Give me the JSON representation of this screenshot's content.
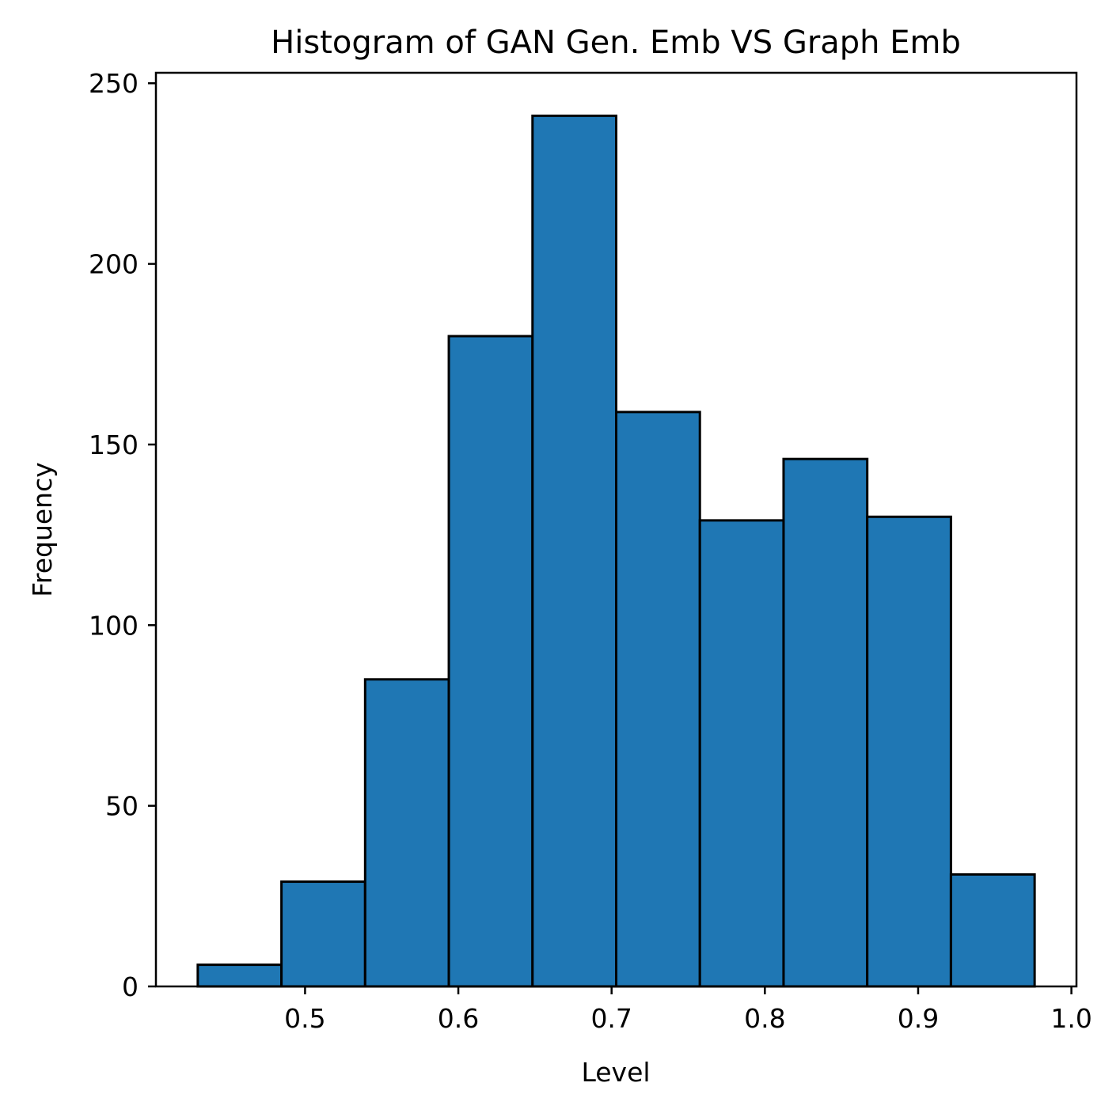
{
  "chart_data": {
    "type": "bar",
    "title": "Histogram of GAN Gen. Emb VS Graph Emb",
    "xlabel": "Level",
    "ylabel": "Frequency",
    "bin_edges": [
      0.43,
      0.4846,
      0.5392,
      0.5938,
      0.6484,
      0.703,
      0.7576,
      0.8122,
      0.8668,
      0.9214,
      0.976
    ],
    "values": [
      6,
      29,
      85,
      180,
      241,
      159,
      129,
      146,
      130,
      31
    ],
    "xlim": [
      0.4027,
      1.0033
    ],
    "ylim": [
      0,
      252.9
    ],
    "xticks": [
      {
        "value": 0.5,
        "label": "0.5"
      },
      {
        "value": 0.6,
        "label": "0.6"
      },
      {
        "value": 0.7,
        "label": "0.7"
      },
      {
        "value": 0.8,
        "label": "0.8"
      },
      {
        "value": 0.9,
        "label": "0.9"
      },
      {
        "value": 1.0,
        "label": "1.0"
      }
    ],
    "yticks": [
      {
        "value": 0,
        "label": "0"
      },
      {
        "value": 50,
        "label": "50"
      },
      {
        "value": 100,
        "label": "100"
      },
      {
        "value": 150,
        "label": "150"
      },
      {
        "value": 200,
        "label": "200"
      },
      {
        "value": 250,
        "label": "250"
      }
    ],
    "grid": false,
    "colors": {
      "bar_fill": "#1f77b4",
      "bar_edge": "#000000",
      "axes": "#000000"
    }
  }
}
